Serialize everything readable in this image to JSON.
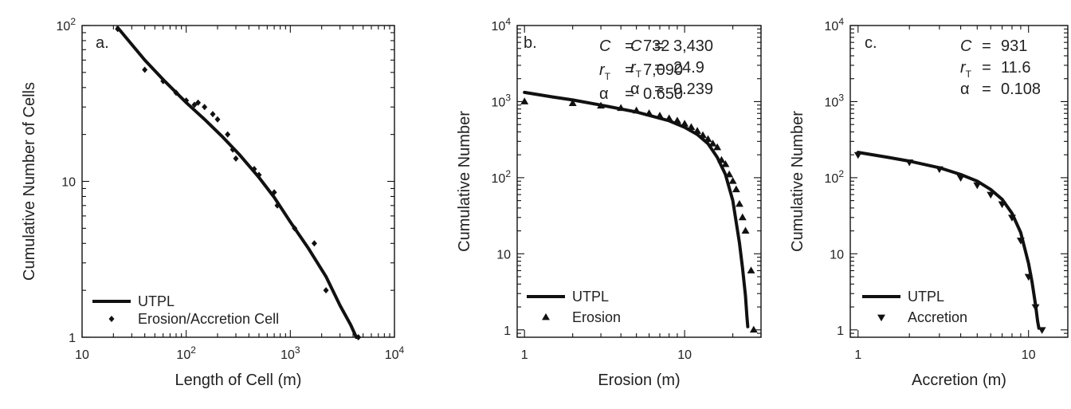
{
  "chart_data": [
    {
      "type": "scatter",
      "panel_label": "a.",
      "xlabel": "Length of Cell (m)",
      "ylabel": "Cumulative Number of Cells",
      "x_scale": "log",
      "y_scale": "log",
      "xlim": [
        10,
        10000
      ],
      "ylim": [
        1,
        100
      ],
      "x_ticks": [
        {
          "value": 10,
          "base": "10",
          "exp": ""
        },
        {
          "value": 100,
          "base": "10",
          "exp": "2"
        },
        {
          "value": 1000,
          "base": "10",
          "exp": "3"
        },
        {
          "value": 10000,
          "base": "10",
          "exp": "4"
        }
      ],
      "y_ticks": [
        {
          "value": 1,
          "base": "1",
          "exp": ""
        },
        {
          "value": 10,
          "base": "10",
          "exp": ""
        },
        {
          "value": 100,
          "base": "10",
          "exp": "2"
        }
      ],
      "params": [
        {
          "sym": "C",
          "sub": "",
          "eq": "=",
          "val": "732"
        },
        {
          "sym": "r",
          "sub": "T",
          "eq": "=",
          "val": "7,090"
        },
        {
          "sym": "α",
          "sub": "",
          "eq": "=",
          "val": "0.650"
        }
      ],
      "legend_position": "bottom-left",
      "series": [
        {
          "name": "UTPL",
          "kind": "line",
          "x": [
            22,
            40,
            60,
            100,
            150,
            220,
            320,
            500,
            700,
            1000,
            1500,
            2200,
            3000,
            3800,
            4300
          ],
          "y": [
            97,
            60,
            45,
            32,
            25,
            19.5,
            15,
            10.6,
            7.9,
            5.5,
            3.7,
            2.45,
            1.6,
            1.2,
            1
          ]
        },
        {
          "name": "Erosion/Accretion Cell",
          "kind": "marker",
          "marker": "diamond",
          "x": [
            22,
            40,
            60,
            80,
            100,
            120,
            130,
            150,
            180,
            200,
            250,
            280,
            300,
            450,
            500,
            700,
            750,
            1100,
            1700,
            2200,
            4500
          ],
          "y": [
            95,
            52,
            44,
            37,
            33,
            31,
            32,
            30,
            27,
            25,
            20,
            16,
            14,
            12,
            11,
            8.5,
            7,
            5,
            4,
            2,
            1
          ]
        }
      ]
    },
    {
      "type": "scatter",
      "panel_label": "b.",
      "xlabel": "Erosion (m)",
      "ylabel": "Cumulative Number",
      "x_scale": "log",
      "y_scale": "log",
      "xlim": [
        0.9,
        30
      ],
      "ylim": [
        0.8,
        10000
      ],
      "x_ticks": [
        {
          "value": 1,
          "base": "1",
          "exp": ""
        },
        {
          "value": 10,
          "base": "10",
          "exp": ""
        }
      ],
      "y_ticks": [
        {
          "value": 1,
          "base": "1",
          "exp": ""
        },
        {
          "value": 10,
          "base": "10",
          "exp": ""
        },
        {
          "value": 100,
          "base": "10",
          "exp": "2"
        },
        {
          "value": 1000,
          "base": "10",
          "exp": "3"
        },
        {
          "value": 10000,
          "base": "10",
          "exp": "4"
        }
      ],
      "params": [
        {
          "sym": "C",
          "sub": "",
          "eq": "=",
          "val": "3,430"
        },
        {
          "sym": "r",
          "sub": "T",
          "eq": "=",
          "val": "24.9"
        },
        {
          "sym": "α",
          "sub": "",
          "eq": "=",
          "val": "0.239"
        }
      ],
      "legend_position": "bottom-left",
      "series": [
        {
          "name": "UTPL",
          "kind": "line",
          "x": [
            1,
            1.5,
            2,
            3,
            4,
            5,
            6,
            8,
            10,
            12,
            14,
            16,
            18,
            20,
            22,
            23,
            24,
            24.5,
            24.8
          ],
          "y": [
            1320,
            1150,
            1050,
            900,
            800,
            730,
            660,
            560,
            460,
            370,
            280,
            185,
            110,
            50,
            14,
            6.5,
            2.8,
            1.5,
            1.1
          ]
        },
        {
          "name": "Erosion",
          "kind": "marker",
          "marker": "triangle-up",
          "x": [
            1,
            2,
            3,
            4,
            5,
            6,
            7,
            8,
            9,
            10,
            11,
            12,
            13,
            14,
            15,
            16,
            17,
            18,
            19,
            20,
            21,
            22,
            23,
            24,
            26,
            27
          ],
          "y": [
            1000,
            950,
            880,
            820,
            760,
            700,
            650,
            600,
            560,
            510,
            460,
            410,
            360,
            320,
            280,
            250,
            170,
            150,
            110,
            90,
            70,
            45,
            30,
            20,
            6,
            1
          ]
        }
      ]
    },
    {
      "type": "scatter",
      "panel_label": "c.",
      "xlabel": "Accretion (m)",
      "ylabel": "Cumulative Number",
      "x_scale": "log",
      "y_scale": "log",
      "xlim": [
        0.9,
        17
      ],
      "ylim": [
        0.8,
        10000
      ],
      "x_ticks": [
        {
          "value": 1,
          "base": "1",
          "exp": ""
        },
        {
          "value": 10,
          "base": "10",
          "exp": ""
        }
      ],
      "y_ticks": [
        {
          "value": 1,
          "base": "1",
          "exp": ""
        },
        {
          "value": 10,
          "base": "10",
          "exp": ""
        },
        {
          "value": 100,
          "base": "10",
          "exp": "2"
        },
        {
          "value": 1000,
          "base": "10",
          "exp": "3"
        },
        {
          "value": 10000,
          "base": "10",
          "exp": "4"
        }
      ],
      "params": [
        {
          "sym": "C",
          "sub": "",
          "eq": "=",
          "val": "931"
        },
        {
          "sym": "r",
          "sub": "T",
          "eq": "=",
          "val": "11.6"
        },
        {
          "sym": "α",
          "sub": "",
          "eq": "=",
          "val": "0.108"
        }
      ],
      "legend_position": "bottom-left",
      "series": [
        {
          "name": "UTPL",
          "kind": "line",
          "x": [
            1,
            1.5,
            2,
            3,
            4,
            5,
            6,
            7,
            8,
            9,
            10,
            10.5,
            11,
            11.3,
            11.5
          ],
          "y": [
            215,
            185,
            165,
            135,
            110,
            90,
            70,
            52,
            34,
            19,
            7.5,
            4.2,
            2.1,
            1.3,
            1.05
          ]
        },
        {
          "name": "Accretion",
          "kind": "marker",
          "marker": "triangle-down",
          "x": [
            1,
            2,
            3,
            4,
            5,
            6,
            7,
            8,
            9,
            10,
            11,
            12
          ],
          "y": [
            200,
            160,
            130,
            100,
            80,
            60,
            45,
            30,
            15,
            5,
            2,
            1
          ]
        }
      ]
    }
  ]
}
